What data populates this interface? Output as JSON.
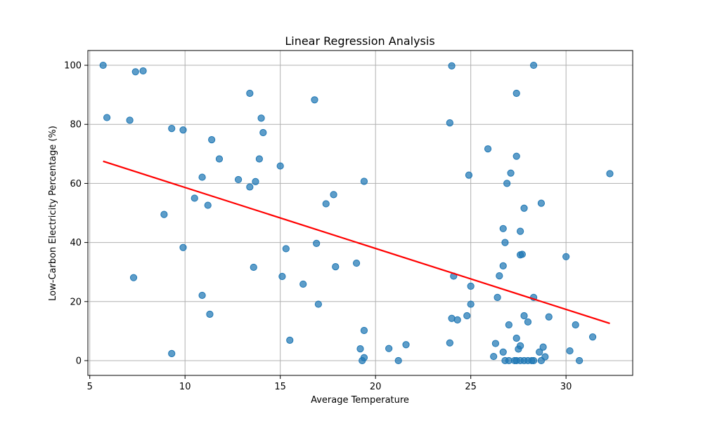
{
  "chart_data": {
    "type": "scatter",
    "title": "Linear Regression Analysis",
    "xlabel": "Average Temperature",
    "ylabel": "Low-Carbon Electricity Percentage (%)",
    "xlim": [
      4.9,
      33.5
    ],
    "ylim": [
      -5,
      105
    ],
    "xticks": [
      5,
      10,
      15,
      20,
      25,
      30
    ],
    "yticks": [
      0,
      20,
      40,
      60,
      80,
      100
    ],
    "grid": true,
    "point_color": "#1f77b4",
    "line_color": "#ff0000",
    "regression_line": {
      "x": [
        5.7,
        32.3
      ],
      "y": [
        67.5,
        12.6
      ]
    },
    "points": [
      [
        5.7,
        100
      ],
      [
        5.9,
        82.3
      ],
      [
        7.1,
        81.4
      ],
      [
        7.4,
        97.8
      ],
      [
        7.8,
        98.1
      ],
      [
        9.3,
        78.6
      ],
      [
        9.9,
        78.1
      ],
      [
        11.4,
        74.8
      ],
      [
        11.8,
        68.3
      ],
      [
        13.4,
        90.5
      ],
      [
        14.0,
        82.1
      ],
      [
        14.1,
        77.2
      ],
      [
        13.9,
        68.3
      ],
      [
        16.8,
        88.3
      ],
      [
        24.0,
        99.8
      ],
      [
        28.3,
        100
      ],
      [
        27.4,
        90.5
      ],
      [
        23.9,
        80.5
      ],
      [
        25.9,
        71.7
      ],
      [
        27.4,
        69.2
      ],
      [
        8.9,
        49.5
      ],
      [
        10.5,
        55.0
      ],
      [
        10.9,
        62.1
      ],
      [
        11.2,
        52.6
      ],
      [
        12.8,
        61.3
      ],
      [
        13.4,
        58.8
      ],
      [
        13.7,
        60.6
      ],
      [
        15.0,
        65.9
      ],
      [
        17.4,
        53.1
      ],
      [
        17.8,
        56.2
      ],
      [
        19.4,
        60.7
      ],
      [
        24.9,
        62.8
      ],
      [
        27.1,
        63.5
      ],
      [
        26.9,
        60.0
      ],
      [
        27.8,
        51.6
      ],
      [
        28.7,
        53.3
      ],
      [
        9.9,
        38.3
      ],
      [
        7.3,
        28.1
      ],
      [
        13.6,
        31.6
      ],
      [
        15.1,
        28.5
      ],
      [
        15.3,
        37.9
      ],
      [
        16.9,
        39.7
      ],
      [
        17.9,
        31.8
      ],
      [
        19.0,
        33.0
      ],
      [
        26.7,
        44.7
      ],
      [
        26.8,
        40.0
      ],
      [
        27.6,
        43.8
      ],
      [
        27.7,
        36.0
      ],
      [
        27.6,
        35.8
      ],
      [
        26.7,
        32.1
      ],
      [
        26.5,
        28.7
      ],
      [
        24.1,
        28.6
      ],
      [
        30.0,
        35.2
      ],
      [
        32.3,
        63.3
      ],
      [
        10.9,
        22.1
      ],
      [
        11.3,
        15.7
      ],
      [
        16.2,
        25.9
      ],
      [
        17.0,
        19.1
      ],
      [
        9.3,
        2.4
      ],
      [
        15.5,
        6.9
      ],
      [
        19.4,
        10.2
      ],
      [
        19.2,
        4.0
      ],
      [
        19.3,
        0
      ],
      [
        19.4,
        1.0
      ],
      [
        20.7,
        4.1
      ],
      [
        21.2,
        0
      ],
      [
        21.6,
        5.4
      ],
      [
        23.9,
        6.0
      ],
      [
        24.0,
        14.3
      ],
      [
        24.3,
        13.8
      ],
      [
        24.8,
        15.2
      ],
      [
        25.0,
        19.1
      ],
      [
        25.0,
        25.2
      ],
      [
        26.4,
        21.4
      ],
      [
        27.8,
        15.2
      ],
      [
        28.0,
        13.1
      ],
      [
        27.0,
        12.1
      ],
      [
        28.3,
        21.4
      ],
      [
        29.1,
        14.8
      ],
      [
        30.5,
        12.1
      ],
      [
        31.4,
        8.0
      ],
      [
        30.2,
        3.3
      ],
      [
        30.7,
        0
      ],
      [
        26.2,
        1.4
      ],
      [
        26.3,
        5.8
      ],
      [
        26.7,
        2.9
      ],
      [
        26.8,
        0
      ],
      [
        27.0,
        0
      ],
      [
        27.3,
        0
      ],
      [
        27.4,
        0
      ],
      [
        27.4,
        7.6
      ],
      [
        27.5,
        3.9
      ],
      [
        27.6,
        5.0
      ],
      [
        27.6,
        0
      ],
      [
        27.8,
        0
      ],
      [
        28.0,
        0
      ],
      [
        28.2,
        0
      ],
      [
        28.3,
        0
      ],
      [
        28.6,
        2.9
      ],
      [
        28.7,
        0
      ],
      [
        28.8,
        4.6
      ],
      [
        28.9,
        1.3
      ]
    ]
  }
}
